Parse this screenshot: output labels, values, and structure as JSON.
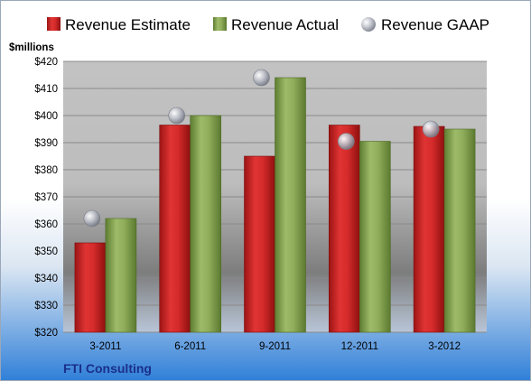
{
  "colors": {
    "estimate": "#d42a2a",
    "actual": "#8fae5a",
    "gaap": "#b8bcc6",
    "company_text": "#1a2f8a"
  },
  "legend": {
    "estimate_label": "Revenue Estimate",
    "actual_label": "Revenue Actual",
    "gaap_label": "Revenue GAAP"
  },
  "company": "FTI Consulting",
  "chart_data": {
    "type": "bar",
    "unit_label": "$millions",
    "categories": [
      "3-2011",
      "6-2011",
      "9-2011",
      "12-2011",
      "3-2012"
    ],
    "series": [
      {
        "name": "Revenue Estimate",
        "kind": "bar",
        "values": [
          353,
          396.5,
          385,
          396.5,
          396
        ]
      },
      {
        "name": "Revenue Actual",
        "kind": "bar",
        "values": [
          362,
          400,
          414,
          390.5,
          395
        ]
      },
      {
        "name": "Revenue GAAP",
        "kind": "marker",
        "values": [
          362,
          400,
          414,
          390.5,
          395
        ]
      }
    ],
    "ylim": [
      320,
      420
    ],
    "yticks": [
      "$320",
      "$330",
      "$340",
      "$350",
      "$360",
      "$370",
      "$380",
      "$390",
      "$400",
      "$410",
      "$420"
    ],
    "grid": true,
    "legend_position": "top"
  }
}
